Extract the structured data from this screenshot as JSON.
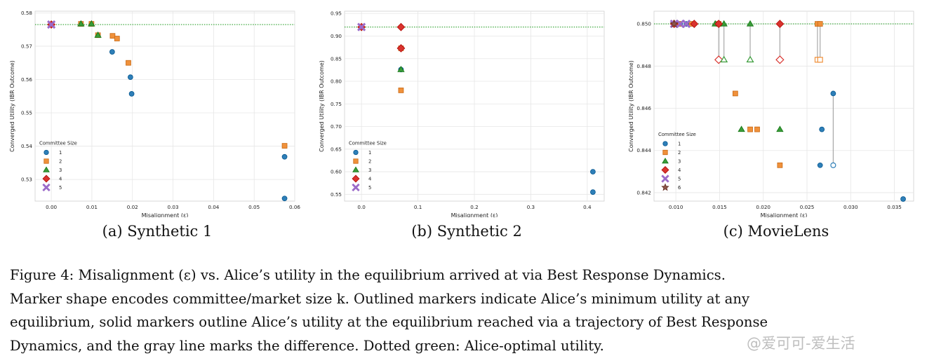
{
  "chart_data": [
    {
      "type": "scatter",
      "subcaption": "(a) Synthetic 1",
      "xlabel": "Misalignment (ε)",
      "ylabel": "Converged Utility (IBR Outcome)",
      "xlim": [
        -0.004,
        0.06
      ],
      "ylim": [
        0.5235,
        0.5805
      ],
      "xticks": [
        0.0,
        0.01,
        0.02,
        0.03,
        0.04,
        0.05,
        0.06
      ],
      "xtick_labels": [
        "0.00",
        "0.01",
        "0.02",
        "0.03",
        "0.04",
        "0.05",
        "0.06"
      ],
      "yticks": [
        0.53,
        0.54,
        0.55,
        0.56,
        0.57,
        0.58
      ],
      "ytick_labels": [
        "0.53",
        "0.54",
        "0.55",
        "0.56",
        "0.57",
        "0.58"
      ],
      "optimal_utility": 0.5765,
      "grid": true,
      "legend": {
        "title": "Committee Size",
        "placement": "lower-left"
      },
      "series": [
        {
          "name": "1",
          "marker": "circle",
          "color": "#2e7fb8",
          "points": [
            [
              0.0,
              0.5765
            ],
            [
              0.015,
              0.5683
            ],
            [
              0.0195,
              0.5607
            ],
            [
              0.0198,
              0.5557
            ],
            [
              0.0575,
              0.5368
            ],
            [
              0.0575,
              0.5243
            ]
          ]
        },
        {
          "name": "2",
          "marker": "square",
          "color": "#f0913b",
          "points": [
            [
              0.0,
              0.5765
            ],
            [
              0.0073,
              0.5767
            ],
            [
              0.0099,
              0.5767
            ],
            [
              0.0115,
              0.5733
            ],
            [
              0.0151,
              0.5731
            ],
            [
              0.0162,
              0.5723
            ],
            [
              0.019,
              0.565
            ],
            [
              0.0575,
              0.5401
            ]
          ]
        },
        {
          "name": "3",
          "marker": "triangle",
          "color": "#3a9c3a",
          "points": [
            [
              0.0,
              0.5765
            ],
            [
              0.0073,
              0.5767
            ],
            [
              0.0099,
              0.5767
            ],
            [
              0.0115,
              0.5733
            ]
          ]
        },
        {
          "name": "4",
          "marker": "diamond",
          "color": "#d9332e",
          "points": [
            [
              0.0,
              0.5765
            ]
          ]
        },
        {
          "name": "5",
          "marker": "x",
          "color": "#9b6bc9",
          "points": [
            [
              0.0,
              0.5765
            ]
          ]
        }
      ],
      "outlined": [],
      "links": []
    },
    {
      "type": "scatter",
      "subcaption": "(b) Synthetic 2",
      "xlabel": "Misalignment (ε)",
      "ylabel": "Converged Utility (IBR Outcome)",
      "xlim": [
        -0.03,
        0.43
      ],
      "ylim": [
        0.535,
        0.955
      ],
      "xticks": [
        0.0,
        0.1,
        0.2,
        0.3,
        0.4
      ],
      "xtick_labels": [
        "0.0",
        "0.1",
        "0.2",
        "0.3",
        "0.4"
      ],
      "yticks": [
        0.55,
        0.6,
        0.65,
        0.7,
        0.75,
        0.8,
        0.85,
        0.9,
        0.95
      ],
      "ytick_labels": [
        "0.55",
        "0.60",
        "0.65",
        "0.70",
        "0.75",
        "0.80",
        "0.85",
        "0.90",
        "0.95"
      ],
      "optimal_utility": 0.92,
      "grid": true,
      "legend": {
        "title": "Committee Size",
        "placement": "lower-left"
      },
      "series": [
        {
          "name": "1",
          "marker": "circle",
          "color": "#2e7fb8",
          "points": [
            [
              0.0,
              0.92
            ],
            [
              0.07,
              0.826
            ],
            [
              0.41,
              0.6
            ],
            [
              0.41,
              0.555
            ]
          ]
        },
        {
          "name": "2",
          "marker": "square",
          "color": "#f0913b",
          "points": [
            [
              0.0,
              0.92
            ],
            [
              0.07,
              0.78
            ],
            [
              0.07,
              0.873
            ]
          ]
        },
        {
          "name": "3",
          "marker": "triangle",
          "color": "#3a9c3a",
          "points": [
            [
              0.0,
              0.92
            ],
            [
              0.07,
              0.826
            ]
          ]
        },
        {
          "name": "4",
          "marker": "diamond",
          "color": "#d9332e",
          "points": [
            [
              0.0,
              0.92
            ],
            [
              0.07,
              0.92
            ],
            [
              0.07,
              0.873
            ]
          ]
        },
        {
          "name": "5",
          "marker": "x",
          "color": "#9b6bc9",
          "points": [
            [
              0.0,
              0.92
            ]
          ]
        }
      ],
      "outlined": [],
      "links": []
    },
    {
      "type": "scatter",
      "subcaption": "(c) MovieLens",
      "xlabel": "Misalignment (ε)",
      "ylabel": "Converged Utility (IBR Outcome)",
      "xlim": [
        0.0075,
        0.0372
      ],
      "ylim": [
        0.8416,
        0.8506
      ],
      "xticks": [
        0.01,
        0.015,
        0.02,
        0.025,
        0.03,
        0.035
      ],
      "xtick_labels": [
        "0.010",
        "0.015",
        "0.020",
        "0.025",
        "0.030",
        "0.035"
      ],
      "yticks": [
        0.842,
        0.844,
        0.846,
        0.848,
        0.85
      ],
      "ytick_labels": [
        "0.842",
        "0.844",
        "0.846",
        "0.848",
        "0.850"
      ],
      "optimal_utility": 0.85,
      "grid": true,
      "legend": {
        "title": "Committee Size",
        "placement": "lower-left"
      },
      "series": [
        {
          "name": "1",
          "marker": "circle",
          "color": "#2e7fb8",
          "points": [
            [
              0.0098,
              0.85
            ],
            [
              0.0105,
              0.85
            ],
            [
              0.0112,
              0.85
            ],
            [
              0.0265,
              0.8433
            ],
            [
              0.0267,
              0.845
            ],
            [
              0.028,
              0.8467
            ],
            [
              0.036,
              0.8417
            ]
          ]
        },
        {
          "name": "2",
          "marker": "square",
          "color": "#f0913b",
          "points": [
            [
              0.0103,
              0.85
            ],
            [
              0.0118,
              0.85
            ],
            [
              0.0149,
              0.85
            ],
            [
              0.0168,
              0.8467
            ],
            [
              0.0185,
              0.845
            ],
            [
              0.0193,
              0.845
            ],
            [
              0.0219,
              0.8433
            ],
            [
              0.0262,
              0.85
            ],
            [
              0.0265,
              0.85
            ]
          ]
        },
        {
          "name": "3",
          "marker": "triangle",
          "color": "#3a9c3a",
          "points": [
            [
              0.0145,
              0.85
            ],
            [
              0.0155,
              0.85
            ],
            [
              0.0185,
              0.85
            ],
            [
              0.0175,
              0.845
            ],
            [
              0.0219,
              0.845
            ]
          ]
        },
        {
          "name": "4",
          "marker": "diamond",
          "color": "#d9332e",
          "points": [
            [
              0.0098,
              0.85
            ],
            [
              0.0121,
              0.85
            ],
            [
              0.0149,
              0.85
            ],
            [
              0.0219,
              0.85
            ]
          ]
        },
        {
          "name": "5",
          "marker": "x",
          "color": "#9b6bc9",
          "points": [
            [
              0.0098,
              0.85
            ],
            [
              0.0105,
              0.85
            ],
            [
              0.0112,
              0.85
            ]
          ]
        },
        {
          "name": "6",
          "marker": "star",
          "color": "#8c564b",
          "points": [
            [
              0.0098,
              0.85
            ]
          ]
        }
      ],
      "outlined": [
        {
          "series": "4",
          "x": 0.0149,
          "y": 0.8483
        },
        {
          "series": "3",
          "x": 0.0155,
          "y": 0.8483
        },
        {
          "series": "3",
          "x": 0.0185,
          "y": 0.8483
        },
        {
          "series": "4",
          "x": 0.0219,
          "y": 0.8483
        },
        {
          "series": "2",
          "x": 0.0262,
          "y": 0.8483
        },
        {
          "series": "2",
          "x": 0.0265,
          "y": 0.8483
        },
        {
          "series": "1",
          "x": 0.028,
          "y": 0.8433
        }
      ],
      "links": [
        {
          "x": 0.0149,
          "y1": 0.85,
          "y2": 0.8483
        },
        {
          "x": 0.0155,
          "y1": 0.85,
          "y2": 0.8483
        },
        {
          "x": 0.0185,
          "y1": 0.85,
          "y2": 0.8483
        },
        {
          "x": 0.0219,
          "y1": 0.85,
          "y2": 0.8483
        },
        {
          "x": 0.0262,
          "y1": 0.85,
          "y2": 0.8483
        },
        {
          "x": 0.0265,
          "y1": 0.85,
          "y2": 0.8483
        },
        {
          "x": 0.028,
          "y1": 0.8467,
          "y2": 0.8433
        }
      ]
    }
  ],
  "caption": {
    "lines": [
      "Figure 4: Misalignment (ε) vs. Alice’s utility in the equilibrium arrived at via Best Response Dynamics.",
      "Marker shape encodes committee/market size k. Outlined markers indicate Alice’s minimum utility at any",
      "equilibrium, solid markers outline Alice’s utility at the equilibrium reached via a trajectory of Best Response",
      "Dynamics, and the gray line marks the difference. Dotted green: Alice-optimal utility."
    ]
  },
  "watermark": "@爱可可-爱生活"
}
